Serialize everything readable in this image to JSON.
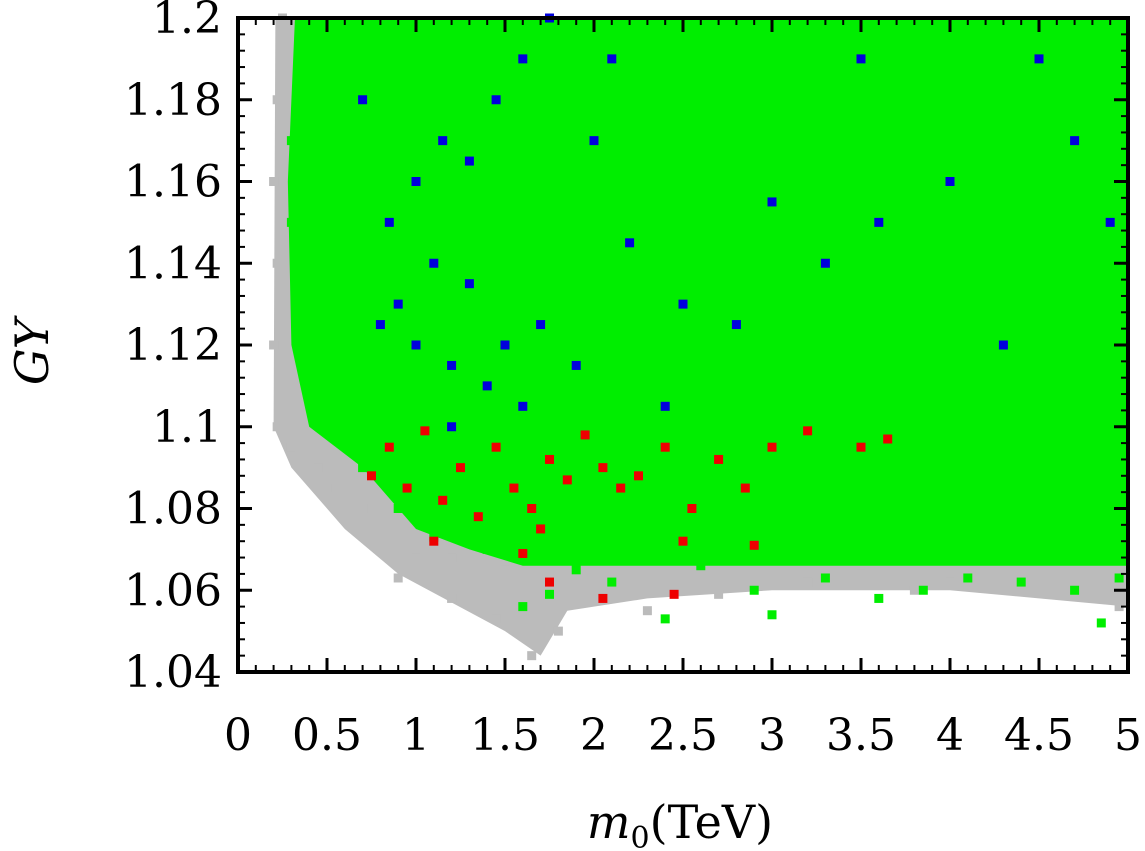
{
  "chart_data": {
    "type": "scatter",
    "title": "",
    "xlabel": "m0(TeV)",
    "xlabel_parts": {
      "symbol": "m",
      "subscript": "0",
      "unit": "(TeV)"
    },
    "ylabel": "GY",
    "xlim": [
      0,
      5
    ],
    "ylim": [
      1.04,
      1.2
    ],
    "xticks": [
      0,
      0.5,
      1,
      1.5,
      2,
      2.5,
      3,
      3.5,
      4,
      4.5,
      5
    ],
    "xtick_labels": [
      "0",
      "0.5",
      "1",
      "1.5",
      "2",
      "2.5",
      "3",
      "3.5",
      "4",
      "4.5",
      "5"
    ],
    "yticks": [
      1.04,
      1.06,
      1.08,
      1.1,
      1.12,
      1.14,
      1.16,
      1.18,
      1.2
    ],
    "ytick_labels": [
      "1.04",
      "1.06",
      "1.08",
      "1.1",
      "1.12",
      "1.14",
      "1.16",
      "1.18",
      "1.2"
    ],
    "grid": false,
    "legend": "none",
    "series": [
      {
        "name": "gray",
        "color": "#bbbbbb",
        "marker": "square",
        "density": "dense",
        "description": "all sampled points",
        "points": [
          [
            0.25,
            1.2
          ],
          [
            0.22,
            1.18
          ],
          [
            0.2,
            1.16
          ],
          [
            0.22,
            1.14
          ],
          [
            0.2,
            1.12
          ],
          [
            0.22,
            1.1
          ],
          [
            0.3,
            1.095
          ],
          [
            0.45,
            1.09
          ],
          [
            0.55,
            1.085
          ],
          [
            0.7,
            1.08
          ],
          [
            0.85,
            1.075
          ],
          [
            1.0,
            1.07
          ],
          [
            1.2,
            1.068
          ],
          [
            1.5,
            1.065
          ],
          [
            1.65,
            1.044
          ],
          [
            1.45,
            1.053
          ],
          [
            1.2,
            1.058
          ],
          [
            0.9,
            1.063
          ],
          [
            0.75,
            1.072
          ],
          [
            2.0,
            1.06
          ],
          [
            2.7,
            1.059
          ],
          [
            3.2,
            1.062
          ],
          [
            3.5,
            1.064
          ],
          [
            4.0,
            1.062
          ],
          [
            4.6,
            1.06
          ],
          [
            4.95,
            1.056
          ],
          [
            1.8,
            1.05
          ],
          [
            2.3,
            1.055
          ],
          [
            3.8,
            1.06
          ]
        ]
      },
      {
        "name": "green",
        "color": "#00ee00",
        "marker": "square",
        "density": "dense",
        "description": "filled region above lower boundary",
        "points": [
          [
            0.35,
            1.19
          ],
          [
            0.3,
            1.17
          ],
          [
            0.3,
            1.15
          ],
          [
            0.35,
            1.13
          ],
          [
            0.4,
            1.11
          ],
          [
            0.5,
            1.1
          ],
          [
            0.7,
            1.09
          ],
          [
            0.9,
            1.08
          ],
          [
            1.1,
            1.073
          ],
          [
            1.4,
            1.07
          ],
          [
            1.6,
            1.056
          ],
          [
            1.9,
            1.065
          ],
          [
            2.1,
            1.062
          ],
          [
            2.4,
            1.053
          ],
          [
            2.6,
            1.066
          ],
          [
            2.9,
            1.06
          ],
          [
            3.3,
            1.063
          ],
          [
            3.6,
            1.058
          ],
          [
            4.1,
            1.063
          ],
          [
            4.4,
            1.062
          ],
          [
            4.85,
            1.052
          ],
          [
            4.95,
            1.063
          ],
          [
            1.75,
            1.059
          ],
          [
            3.0,
            1.054
          ],
          [
            3.85,
            1.06
          ],
          [
            4.7,
            1.06
          ]
        ]
      },
      {
        "name": "blue",
        "color": "#0000dd",
        "marker": "square",
        "density": "sparse",
        "description": "cluster around m0 1-2 TeV, GY 1.10-1.20",
        "points": [
          [
            0.8,
            1.125
          ],
          [
            0.9,
            1.13
          ],
          [
            1.0,
            1.12
          ],
          [
            1.1,
            1.14
          ],
          [
            1.2,
            1.115
          ],
          [
            1.3,
            1.135
          ],
          [
            1.4,
            1.11
          ],
          [
            1.5,
            1.12
          ],
          [
            1.6,
            1.105
          ],
          [
            1.7,
            1.125
          ],
          [
            0.85,
            1.15
          ],
          [
            1.0,
            1.16
          ],
          [
            1.15,
            1.17
          ],
          [
            1.3,
            1.165
          ],
          [
            1.45,
            1.18
          ],
          [
            1.6,
            1.19
          ],
          [
            1.75,
            1.2
          ],
          [
            2.0,
            1.17
          ],
          [
            2.2,
            1.145
          ],
          [
            2.5,
            1.13
          ],
          [
            2.8,
            1.125
          ],
          [
            3.0,
            1.155
          ],
          [
            3.3,
            1.14
          ],
          [
            3.6,
            1.15
          ],
          [
            4.0,
            1.16
          ],
          [
            4.3,
            1.12
          ],
          [
            4.7,
            1.17
          ],
          [
            4.9,
            1.15
          ],
          [
            2.4,
            1.105
          ],
          [
            1.2,
            1.1
          ],
          [
            0.7,
            1.18
          ],
          [
            1.9,
            1.115
          ],
          [
            2.1,
            1.19
          ],
          [
            3.5,
            1.19
          ],
          [
            4.5,
            1.19
          ]
        ]
      },
      {
        "name": "red",
        "color": "#ee0000",
        "marker": "square",
        "density": "sparse",
        "description": "band GY 1.06-1.10",
        "points": [
          [
            0.75,
            1.088
          ],
          [
            0.85,
            1.095
          ],
          [
            0.95,
            1.085
          ],
          [
            1.05,
            1.099
          ],
          [
            1.15,
            1.082
          ],
          [
            1.25,
            1.09
          ],
          [
            1.35,
            1.078
          ],
          [
            1.45,
            1.095
          ],
          [
            1.55,
            1.085
          ],
          [
            1.65,
            1.08
          ],
          [
            1.75,
            1.092
          ],
          [
            1.85,
            1.087
          ],
          [
            1.95,
            1.098
          ],
          [
            2.05,
            1.09
          ],
          [
            2.15,
            1.085
          ],
          [
            2.25,
            1.088
          ],
          [
            2.4,
            1.095
          ],
          [
            2.55,
            1.08
          ],
          [
            2.7,
            1.092
          ],
          [
            2.85,
            1.085
          ],
          [
            3.0,
            1.095
          ],
          [
            3.2,
            1.099
          ],
          [
            3.5,
            1.095
          ],
          [
            3.65,
            1.097
          ],
          [
            1.1,
            1.072
          ],
          [
            1.6,
            1.069
          ],
          [
            1.75,
            1.062
          ],
          [
            2.05,
            1.058
          ],
          [
            2.45,
            1.059
          ],
          [
            2.9,
            1.071
          ],
          [
            2.5,
            1.072
          ],
          [
            1.7,
            1.075
          ]
        ]
      }
    ],
    "regions": [
      {
        "name": "gray-region",
        "color": "#bbbbbb",
        "boundary": [
          [
            0.21,
            1.2
          ],
          [
            0.2,
            1.1
          ],
          [
            0.3,
            1.09
          ],
          [
            0.6,
            1.075
          ],
          [
            0.9,
            1.064
          ],
          [
            1.2,
            1.057
          ],
          [
            1.5,
            1.05
          ],
          [
            1.7,
            1.044
          ],
          [
            1.85,
            1.055
          ],
          [
            2.3,
            1.058
          ],
          [
            3.0,
            1.06
          ],
          [
            4.0,
            1.06
          ],
          [
            5.0,
            1.056
          ],
          [
            5.0,
            1.2
          ]
        ]
      },
      {
        "name": "green-region",
        "color": "#00ee00",
        "boundary": [
          [
            0.32,
            1.2
          ],
          [
            0.28,
            1.16
          ],
          [
            0.3,
            1.12
          ],
          [
            0.4,
            1.1
          ],
          [
            0.7,
            1.09
          ],
          [
            1.0,
            1.075
          ],
          [
            1.3,
            1.07
          ],
          [
            1.6,
            1.066
          ],
          [
            2.0,
            1.066
          ],
          [
            2.6,
            1.066
          ],
          [
            3.2,
            1.066
          ],
          [
            4.0,
            1.066
          ],
          [
            5.0,
            1.066
          ],
          [
            5.0,
            1.2
          ]
        ]
      }
    ]
  }
}
